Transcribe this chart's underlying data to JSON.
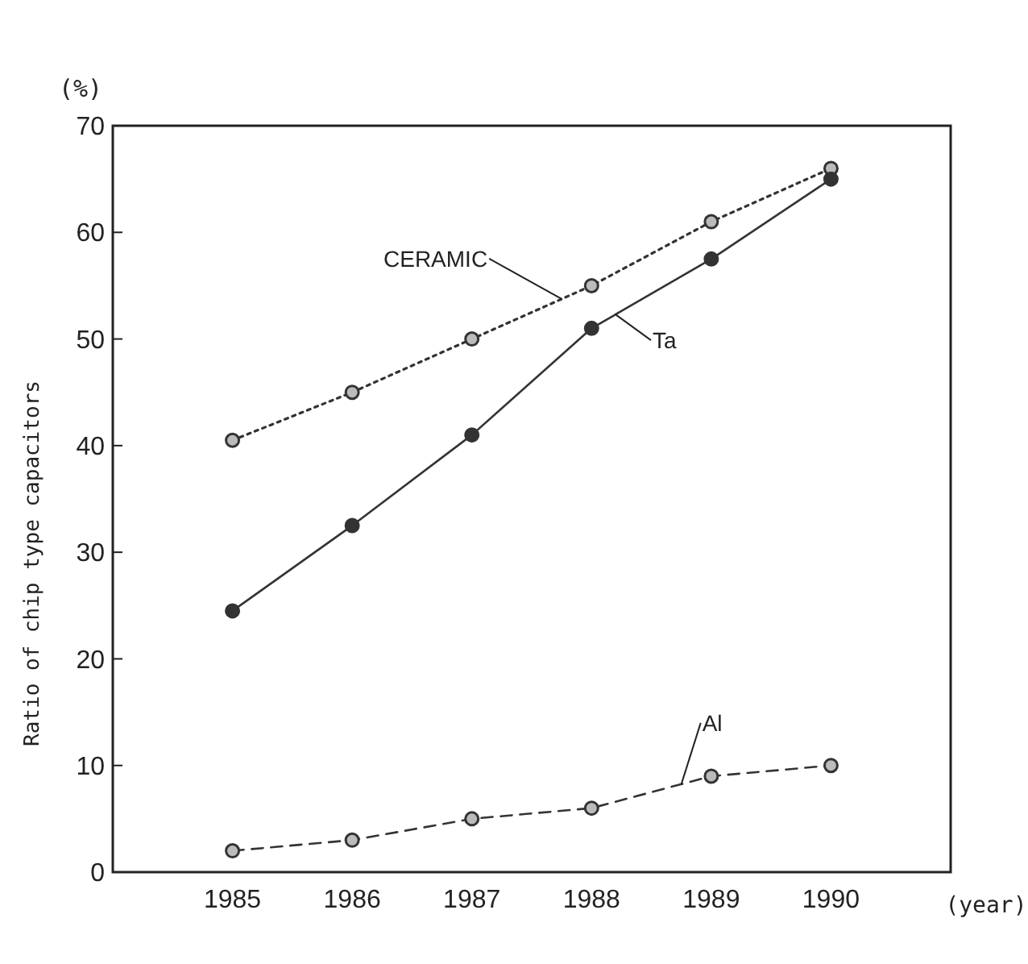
{
  "chart_data": {
    "type": "line",
    "ylabel": "Ratio of chip type capacitors",
    "xlabel": "(year)",
    "annotations": [
      "(%)"
    ],
    "x": [
      1985,
      1986,
      1987,
      1988,
      1989,
      1990
    ],
    "xlim": [
      1984,
      1991
    ],
    "xticks": [
      1985,
      1986,
      1987,
      1988,
      1989,
      1990
    ],
    "ylim": [
      0,
      70
    ],
    "yticks": [
      0,
      10,
      20,
      30,
      40,
      50,
      60,
      70
    ],
    "grid": false,
    "marker": "circle",
    "series": [
      {
        "name": "CERAMIC",
        "color": "#333333",
        "line_style": "dotted",
        "values": [
          40.5,
          45,
          50,
          55,
          61,
          66
        ]
      },
      {
        "name": "Ta",
        "color": "#333333",
        "line_style": "solid",
        "values": [
          24.5,
          32.5,
          41,
          51,
          57.5,
          65
        ]
      },
      {
        "name": "Al",
        "color": "#333333",
        "line_style": "dashed",
        "values": [
          2,
          3,
          5,
          6,
          9,
          10
        ]
      }
    ]
  }
}
